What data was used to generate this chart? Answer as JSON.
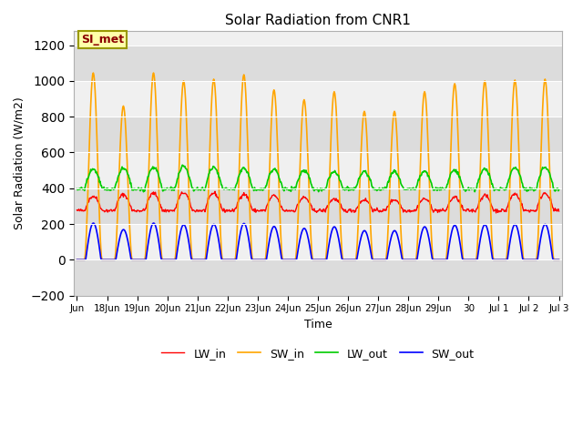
{
  "title": "Solar Radiation from CNR1",
  "xlabel": "Time",
  "ylabel": "Solar Radiation (W/m2)",
  "ylim": [
    -200,
    1300
  ],
  "yticks": [
    -200,
    0,
    200,
    400,
    600,
    800,
    1000,
    1200
  ],
  "annotation_text": "SI_met",
  "background_color": "#ffffff",
  "plot_bg_color": "#f0f0f0",
  "band_colors": [
    "#dcdcdc",
    "#f0f0f0"
  ],
  "grid_color": "#ffffff",
  "series": {
    "LW_in": {
      "color": "#ff0000",
      "label": "LW_in"
    },
    "SW_in": {
      "color": "#ffa500",
      "label": "SW_in"
    },
    "LW_out": {
      "color": "#00cc00",
      "label": "LW_out"
    },
    "SW_out": {
      "color": "#0000ff",
      "label": "SW_out"
    }
  },
  "tick_labels": [
    "Jun",
    "18Jun",
    "19Jun",
    "20Jun",
    "21Jun",
    "22Jun",
    "23Jun",
    "24Jun",
    "25Jun",
    "26Jun",
    "27Jun",
    "28Jun",
    "29Jun",
    "30",
    "Jul 1",
    "Jul 2",
    "Jul 3"
  ],
  "SW_in_peaks": [
    1045,
    860,
    1045,
    1000,
    1010,
    1035,
    950,
    895,
    940,
    830,
    830,
    940,
    985,
    1000,
    1005,
    1010
  ],
  "SW_out_max": 205,
  "LW_in_day_base": 310,
  "LW_in_day_amp": 60,
  "LW_in_night": 270,
  "LW_out_day_base": 430,
  "LW_out_day_amp": 100,
  "LW_out_night": 395
}
